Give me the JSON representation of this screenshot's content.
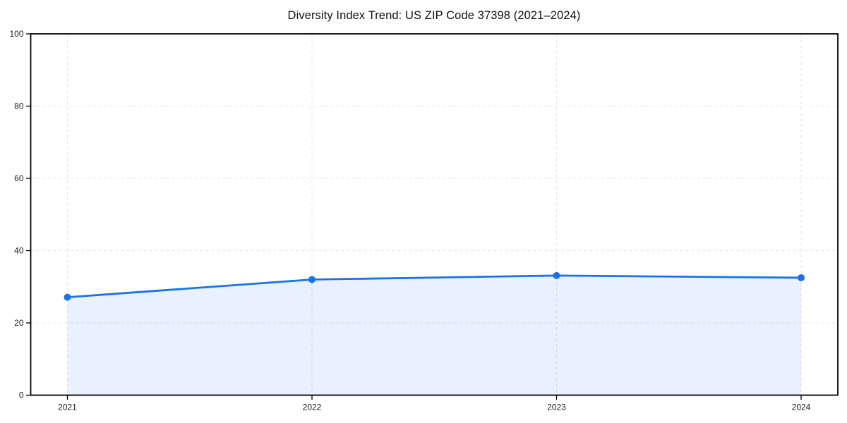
{
  "title": "Diversity Index Trend: US ZIP Code 37398 (2021–2024)",
  "colors": {
    "line": "#1a73e8",
    "marker": "#1a73e8",
    "fill": "rgba(26,115,232,0.10)",
    "grid": "#e4e4e4",
    "axis": "#000000",
    "text": "#1a1a1a",
    "background": "#ffffff"
  },
  "chart_data": {
    "type": "area",
    "title": "Diversity Index Trend: US ZIP Code 37398 (2021–2024)",
    "x": [
      "2021",
      "2022",
      "2023",
      "2024"
    ],
    "values": [
      27.1,
      32.0,
      33.1,
      32.5
    ],
    "series": [
      {
        "name": "Diversity Index",
        "values": [
          27.1,
          32.0,
          33.1,
          32.5
        ]
      }
    ],
    "xlabel": "",
    "ylabel": "",
    "ylim": [
      0,
      100
    ],
    "yticks": [
      0,
      20,
      40,
      60,
      80,
      100
    ],
    "xtick_labels": [
      "2021",
      "2022",
      "2023",
      "2024"
    ],
    "grid": "dashed",
    "legend": "none",
    "marker": "circle"
  }
}
